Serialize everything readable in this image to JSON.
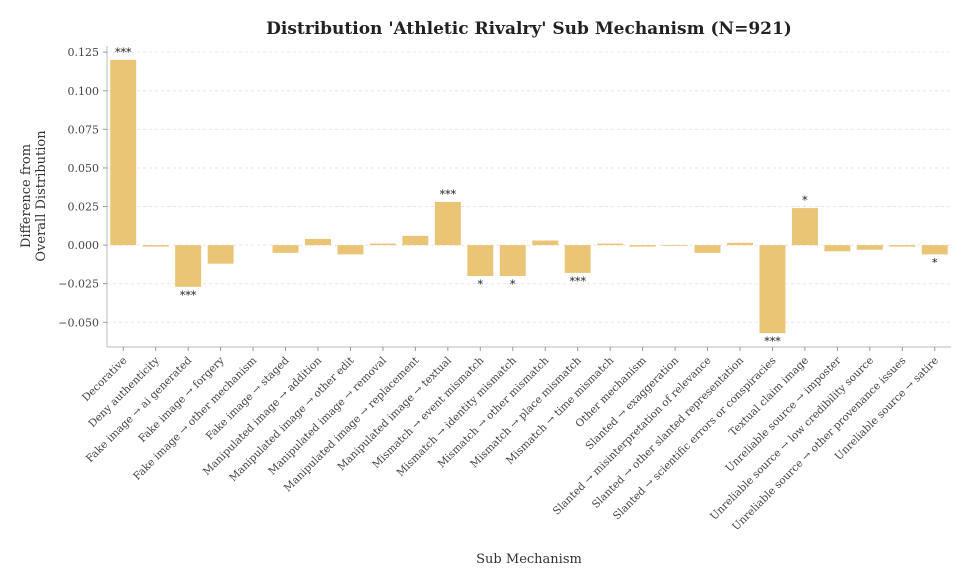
{
  "chart_data": {
    "type": "bar",
    "title": "Distribution 'Athletic Rivalry' Sub Mechanism (N=921)",
    "xlabel": "Sub Mechanism",
    "ylabel_lines": [
      "Difference from",
      "Overall Distribution"
    ],
    "ylim": [
      -0.066,
      0.129
    ],
    "yticks": [
      -0.05,
      -0.025,
      0.0,
      0.025,
      0.05,
      0.075,
      0.1,
      0.125
    ],
    "ytick_labels": [
      "−0.050",
      "−0.025",
      "0.000",
      "0.025",
      "0.050",
      "0.075",
      "0.100",
      "0.125"
    ],
    "grid": true,
    "bar_color": "#EBC576",
    "categories": [
      "Decorative",
      "Deny authenticity",
      "Fake image → ai generated",
      "Fake image → forgery",
      "Fake image → other mechanism",
      "Fake image → staged",
      "Manipulated image → addition",
      "Manipulated image → other edit",
      "Manipulated image → removal",
      "Manipulated image → replacement",
      "Manipulated image → textual",
      "Mismatch → event mismatch",
      "Mismatch → identity mismatch",
      "Mismatch → other mismatch",
      "Mismatch → place mismatch",
      "Mismatch → time mismatch",
      "Other mechanism",
      "Slanted → exaggeration",
      "Slanted → misinterpretation of relevance",
      "Slanted → other slanted representation",
      "Slanted → scientific errors or conspiracies",
      "Textual claim image",
      "Unreliable source → imposter",
      "Unreliable source → low credibility source",
      "Unreliable source → other provenance issues",
      "Unreliable source → satire"
    ],
    "values": [
      0.12,
      -0.001,
      -0.027,
      -0.012,
      0.0,
      -0.005,
      0.004,
      -0.006,
      0.001,
      0.006,
      0.028,
      -0.02,
      -0.02,
      0.003,
      -0.018,
      0.001,
      -0.001,
      -0.0005,
      -0.005,
      0.0015,
      -0.057,
      0.024,
      -0.004,
      -0.003,
      -0.001,
      -0.006
    ],
    "significance": [
      "***",
      "",
      "***",
      "",
      "",
      "",
      "",
      "",
      "",
      "",
      "***",
      "*",
      "*",
      "",
      "***",
      "",
      "",
      "",
      "",
      "",
      "***",
      "*",
      "",
      "",
      "",
      "*"
    ]
  }
}
